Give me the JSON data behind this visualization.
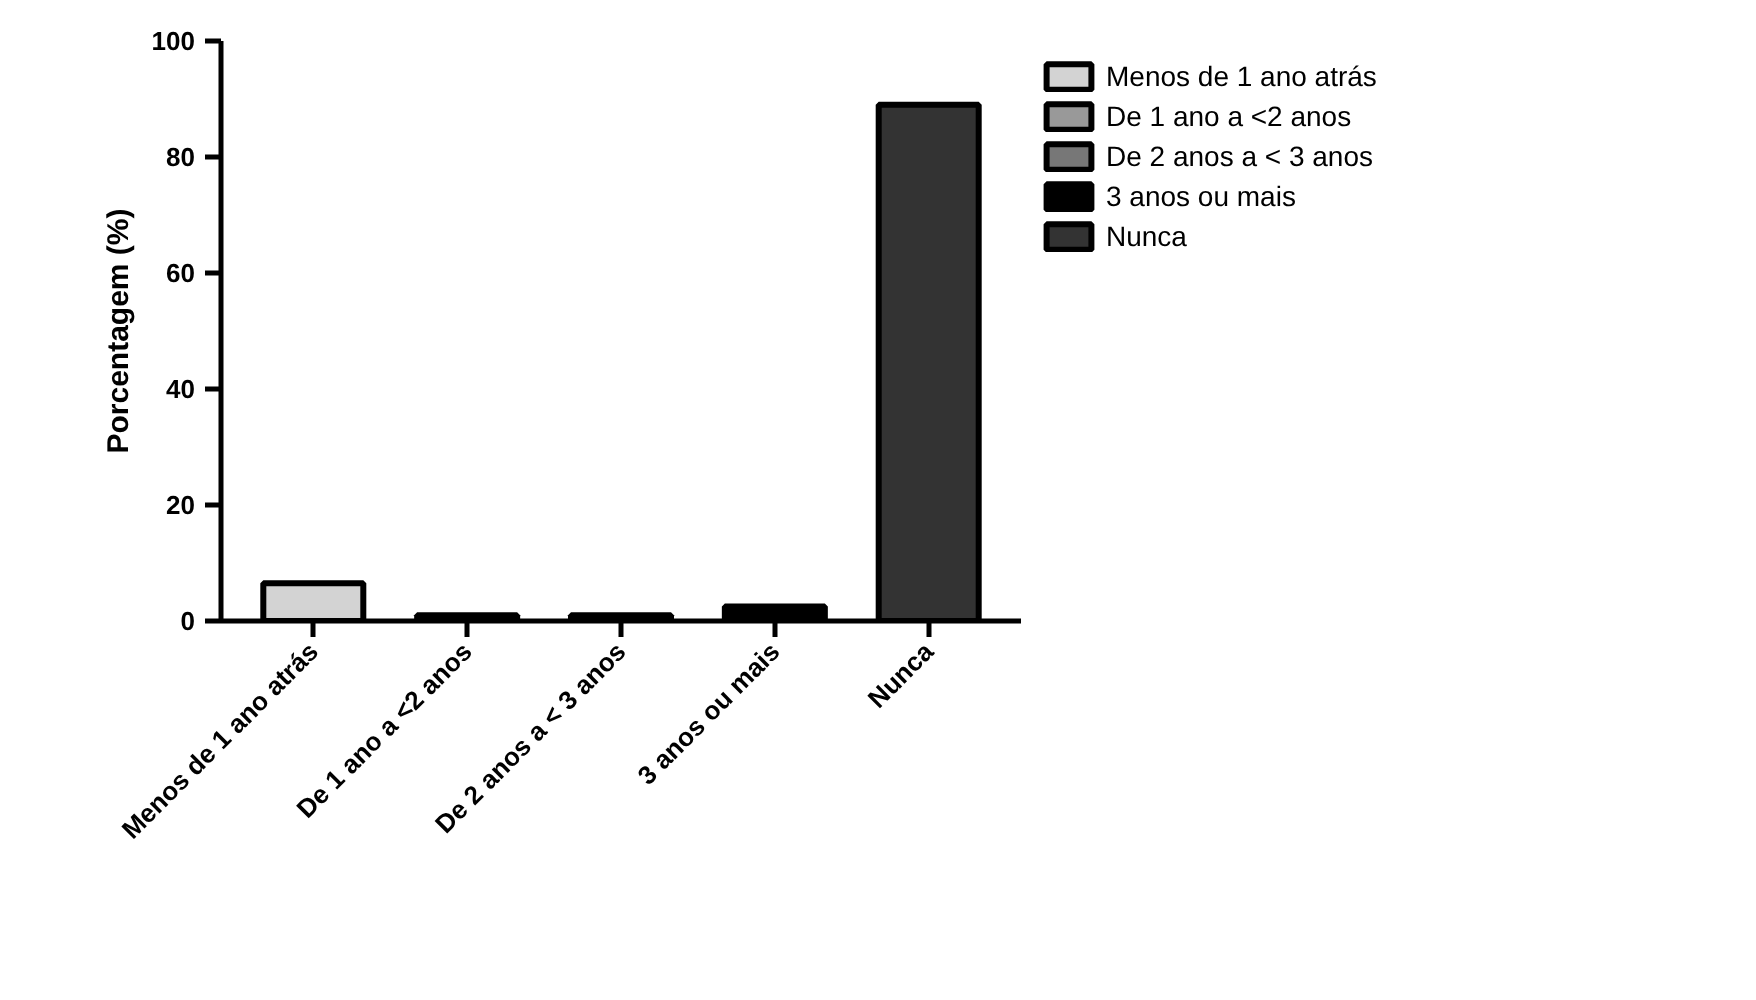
{
  "chart_data": {
    "type": "bar",
    "stacked": true,
    "ylabel": "Porcentagem (%)",
    "categories": [
      "Menos de 1 ano atrás",
      "De 1 ano a <2 anos",
      "De 2 anos a < 3 anos",
      "3 anos ou mais",
      "Nunca"
    ],
    "series": [
      {
        "name": "Menos de 1 ano atrás",
        "color": "#d3d3d3",
        "values": [
          6.5,
          null,
          null,
          null,
          null
        ]
      },
      {
        "name": "De 1 ano a <2 anos",
        "color": "#999999",
        "values": [
          null,
          1,
          null,
          null,
          null
        ]
      },
      {
        "name": "De 2 anos a < 3 anos",
        "color": "#777777",
        "values": [
          null,
          null,
          1,
          null,
          null
        ]
      },
      {
        "name": "3 anos ou mais",
        "color": "#000000",
        "values": [
          null,
          null,
          null,
          2.5,
          null
        ]
      },
      {
        "name": "Nunca",
        "color": "#333333",
        "values": [
          null,
          null,
          null,
          null,
          89
        ]
      }
    ],
    "ylim": [
      0,
      100
    ],
    "yticks": [
      0,
      20,
      40,
      60,
      80,
      100
    ],
    "grid": false,
    "legend": "top right"
  }
}
